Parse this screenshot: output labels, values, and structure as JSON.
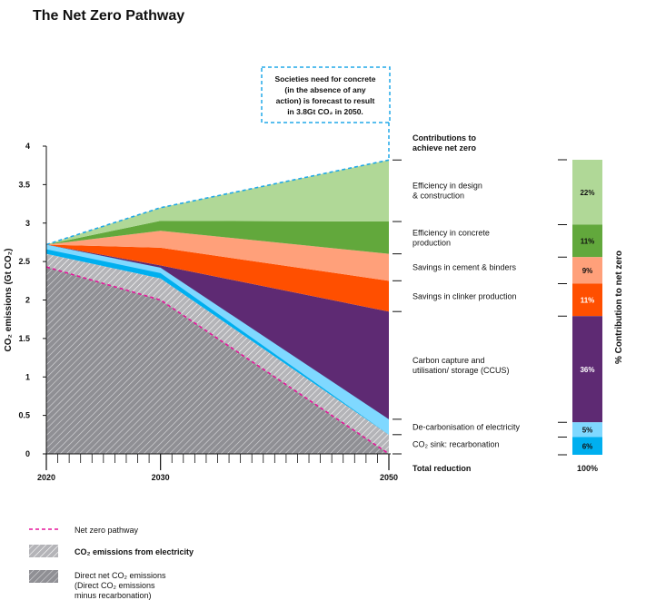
{
  "page": {
    "title": "The Net Zero Pathway"
  },
  "callout": {
    "lines": [
      "Societies need for concrete",
      "(in the absence of any",
      "action) is forecast to result",
      "in 3.8Gt CO₂ in 2050."
    ]
  },
  "colors": {
    "efficiency_design": "#b0d897",
    "efficiency_production": "#62a83c",
    "cement_binders": "#ffa07a",
    "clinker": "#ff4f00",
    "ccus": "#5e2a73",
    "electricity_decarb": "#7fd8ff",
    "recarbonation": "#00afef",
    "hatch": "#b4b4b8",
    "pathway": "#e5169b",
    "callout": "#20a8e8"
  },
  "chart_data": {
    "type": "area",
    "title": "The Net Zero Pathway",
    "xlabel": "",
    "ylabel": "CO₂ emissions (Gt CO₂)",
    "x": [
      2020,
      2030,
      2050
    ],
    "xlim": [
      2020,
      2050
    ],
    "ylim": [
      0,
      4
    ],
    "yticks": [
      0,
      0.5,
      1,
      1.5,
      2,
      2.5,
      3,
      3.5,
      4
    ],
    "ytick_labels": [
      "0",
      "0.5",
      "1",
      "1.5",
      "2",
      "2.5",
      "3",
      "3.5",
      "4"
    ],
    "xtick_labels": [
      "2020",
      "2030",
      "2050"
    ],
    "stacked_boundaries": {
      "direct_net_emissions": [
        2.43,
        2.0,
        0.0
      ],
      "electricity_emissions_top": [
        2.6,
        2.28,
        0.25
      ],
      "recarbonation_top": [
        2.72,
        2.42,
        0.45
      ],
      "decarb_electricity_top": [
        2.72,
        2.42,
        0.45
      ],
      "ccus_top": [
        2.72,
        2.45,
        1.85
      ],
      "clinker_top": [
        2.72,
        2.68,
        2.25
      ],
      "cement_binders_top": [
        2.72,
        2.9,
        2.6
      ],
      "efficiency_production_top": [
        2.72,
        3.03,
        3.02
      ],
      "efficiency_design_top": [
        2.72,
        3.2,
        3.82
      ]
    },
    "contributions_header": [
      "Contributions to",
      "achieve net zero"
    ],
    "contributions": [
      {
        "label_lines": [
          "Efficiency in design",
          "& construction"
        ],
        "pct": "22%",
        "value": 22,
        "color": "#b0d897"
      },
      {
        "label_lines": [
          "Efficiency in concrete",
          "production"
        ],
        "pct": "11%",
        "value": 11,
        "color": "#62a83c"
      },
      {
        "label_lines": [
          "Savings in cement & binders"
        ],
        "pct": "9%",
        "value": 9,
        "color": "#ffa07a"
      },
      {
        "label_lines": [
          "Savings in clinker production"
        ],
        "pct": "11%",
        "value": 11,
        "color": "#ff4f00"
      },
      {
        "label_lines": [
          "Carbon capture and",
          "utilisation/ storage (CCUS)"
        ],
        "pct": "36%",
        "value": 36,
        "color": "#5e2a73"
      },
      {
        "label_lines": [
          "De-carbonisation of electricity"
        ],
        "pct": "5%",
        "value": 5,
        "color": "#7fd8ff"
      },
      {
        "label_lines": [
          "CO₂ sink: recarbonation"
        ],
        "pct": "6%",
        "value": 6,
        "color": "#00afef"
      }
    ],
    "total_label": "Total reduction",
    "total_pct": "100%",
    "right_axis_label": "%  Contribution to net zero",
    "legend": [
      {
        "key": "pathway",
        "label_lines": [
          "Net zero pathway"
        ],
        "bold": false
      },
      {
        "key": "electricity",
        "label_lines": [
          "CO₂ emissions from electricity"
        ],
        "bold": true
      },
      {
        "key": "direct",
        "label_lines": [
          "Direct net CO₂ emissions",
          "(Direct CO₂ emissions",
          "minus recarbonation)"
        ],
        "bold": false
      }
    ]
  }
}
